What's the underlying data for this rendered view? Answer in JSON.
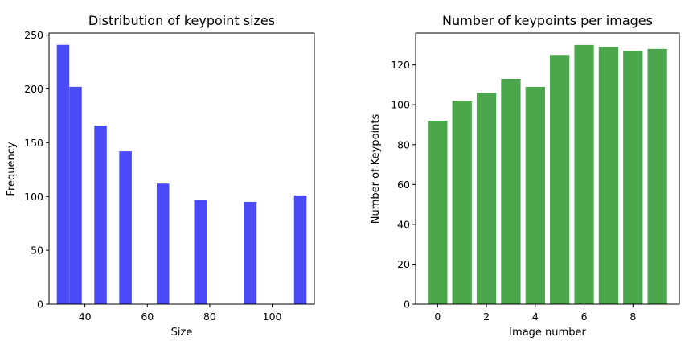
{
  "chart_data": [
    {
      "type": "bar",
      "title": "Distribution of keypoint sizes",
      "xlabel": "Size",
      "ylabel": "Frequency",
      "color": "#4a4af6",
      "xlim": [
        28.5,
        113.5
      ],
      "ylim": [
        0,
        252
      ],
      "xticks": [
        "40",
        "60",
        "80",
        "100"
      ],
      "yticks": [
        "0",
        "50",
        "100",
        "150",
        "200",
        "250"
      ],
      "bins": [
        {
          "x0": 31,
          "x1": 35,
          "value": 241
        },
        {
          "x0": 35,
          "x1": 39,
          "value": 202
        },
        {
          "x0": 43,
          "x1": 47,
          "value": 166
        },
        {
          "x0": 51,
          "x1": 55,
          "value": 142
        },
        {
          "x0": 63,
          "x1": 67,
          "value": 112
        },
        {
          "x0": 75,
          "x1": 79,
          "value": 97
        },
        {
          "x0": 91,
          "x1": 95,
          "value": 95
        },
        {
          "x0": 107,
          "x1": 111,
          "value": 101
        }
      ]
    },
    {
      "type": "bar",
      "title": "Number of keypoints per images",
      "xlabel": "Image number",
      "ylabel": "Number of Keypoints",
      "color": "#4ca64c",
      "xlim": [
        -0.9,
        9.9
      ],
      "ylim": [
        0,
        136
      ],
      "xticks": [
        "0",
        "2",
        "4",
        "6",
        "8"
      ],
      "yticks": [
        "0",
        "20",
        "40",
        "60",
        "80",
        "100",
        "120"
      ],
      "categories": [
        0,
        1,
        2,
        3,
        4,
        5,
        6,
        7,
        8,
        9
      ],
      "values": [
        92,
        102,
        106,
        113,
        109,
        125,
        130,
        129,
        127,
        128
      ]
    }
  ]
}
